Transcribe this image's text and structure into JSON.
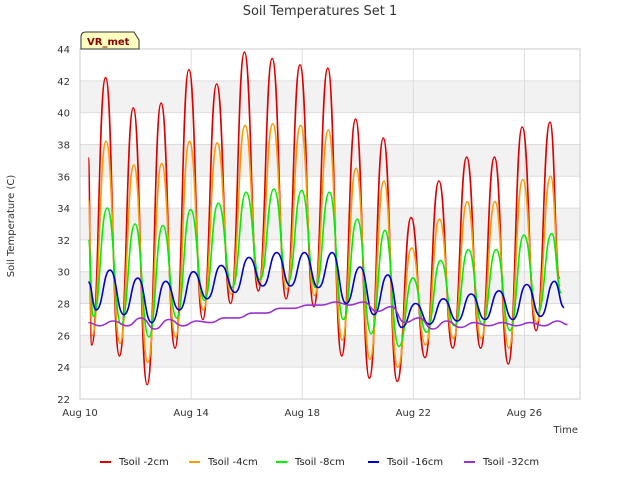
{
  "chart_data": {
    "type": "line",
    "title": "Soil Temperatures Set 1",
    "xlabel": "Time",
    "ylabel": "Soil Temperature (C)",
    "badge": "VR_met",
    "x_ticks": [
      "Aug 10",
      "Aug 14",
      "Aug 18",
      "Aug 22",
      "Aug 26"
    ],
    "x_tick_days": [
      10,
      14,
      18,
      22,
      26
    ],
    "xlim": [
      10,
      28
    ],
    "ylim": [
      22,
      44
    ],
    "y_ticks": [
      22,
      24,
      26,
      28,
      30,
      32,
      34,
      36,
      38,
      40,
      42,
      44
    ],
    "grid": true,
    "legend_position": "bottom",
    "x_start_day": 10.3,
    "days": [
      10.3,
      11.3,
      12.3,
      13.3,
      14.3,
      15.3,
      16.3,
      17.3,
      18.3,
      19.3,
      20.3,
      21.3,
      22.3,
      23.3,
      24.3,
      25.3,
      26.3
    ],
    "series": [
      {
        "name": "Tsoil -2cm",
        "color": "#dd0000",
        "peaks": [
          42.2,
          40.3,
          40.6,
          42.7,
          41.8,
          43.8,
          43.4,
          43.0,
          42.8,
          39.6,
          38.4,
          33.4,
          35.7,
          37.2,
          37.2,
          39.1,
          39.4
        ],
        "troughs": [
          25.4,
          24.7,
          22.9,
          25.2,
          27.0,
          28.0,
          28.8,
          28.3,
          27.8,
          24.7,
          23.3,
          23.1,
          24.6,
          25.2,
          25.2,
          24.2,
          26.3
        ]
      },
      {
        "name": "Tsoil -4cm",
        "color": "#ff9900",
        "peaks": [
          38.2,
          36.7,
          36.8,
          38.2,
          38.1,
          39.2,
          39.3,
          39.2,
          38.9,
          36.5,
          35.7,
          31.5,
          33.3,
          34.4,
          34.4,
          35.8,
          36.0
        ],
        "troughs": [
          26.0,
          25.5,
          24.3,
          25.9,
          27.6,
          28.6,
          29.2,
          28.9,
          28.5,
          25.7,
          24.5,
          24.0,
          25.4,
          25.8,
          25.8,
          25.2,
          26.8
        ]
      },
      {
        "name": "Tsoil -8cm",
        "color": "#00ee00",
        "peaks": [
          34.0,
          33.0,
          32.9,
          33.9,
          34.3,
          35.0,
          35.2,
          35.1,
          35.0,
          33.3,
          32.6,
          29.6,
          30.7,
          31.4,
          31.4,
          32.3,
          32.4
        ],
        "troughs": [
          27.2,
          26.7,
          25.9,
          27.1,
          28.2,
          29.0,
          29.5,
          29.3,
          29.0,
          27.0,
          26.1,
          25.3,
          26.2,
          26.6,
          26.7,
          26.3,
          27.4
        ]
      },
      {
        "name": "Tsoil -16cm",
        "color": "#0000cc",
        "peaks": [
          30.1,
          29.6,
          29.4,
          30.0,
          30.4,
          30.9,
          31.2,
          31.2,
          31.2,
          30.3,
          29.8,
          28.0,
          28.3,
          28.6,
          28.8,
          29.2,
          29.4
        ],
        "troughs": [
          27.6,
          27.3,
          26.8,
          27.6,
          28.3,
          28.7,
          29.1,
          29.1,
          29.0,
          28.0,
          27.3,
          26.5,
          26.7,
          26.9,
          27.0,
          27.0,
          27.2
        ]
      },
      {
        "name": "Tsoil -32cm",
        "color": "#9933cc",
        "peaks": [
          26.9,
          27.1,
          27.0,
          26.9,
          27.1,
          27.4,
          27.7,
          27.9,
          28.1,
          28.1,
          27.8,
          27.1,
          26.9,
          26.8,
          26.8,
          26.8,
          26.9
        ],
        "troughs": [
          26.6,
          26.6,
          26.4,
          26.6,
          26.8,
          27.1,
          27.4,
          27.7,
          27.9,
          27.9,
          27.5,
          26.8,
          26.4,
          26.5,
          26.6,
          26.6,
          26.6
        ]
      }
    ]
  }
}
